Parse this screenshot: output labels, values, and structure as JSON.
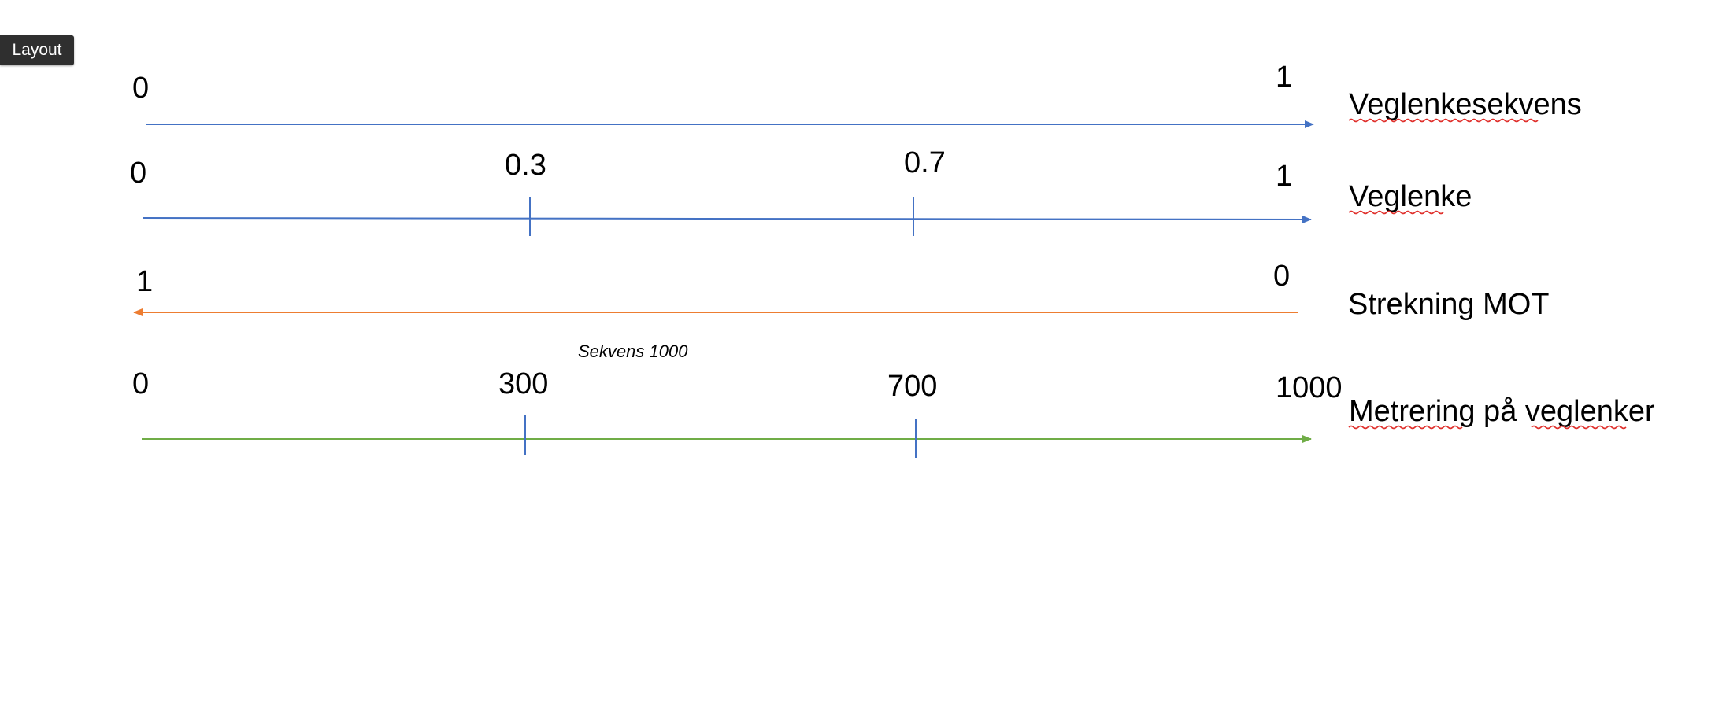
{
  "toolbar": {
    "layout_label": "Layout"
  },
  "colors": {
    "blue": "#4472c4",
    "orange": "#ed7d31",
    "green": "#70ad47",
    "spellcheck": "#e0312d"
  },
  "rows": [
    {
      "name": "Veglenkesekvens",
      "direction": "forward",
      "color": "#4472c4",
      "start_label": "0",
      "end_label": "1",
      "ticks": []
    },
    {
      "name": "Veglenke",
      "direction": "forward",
      "color": "#4472c4",
      "start_label": "0",
      "end_label": "1",
      "ticks": [
        "0.3",
        "0.7"
      ]
    },
    {
      "name": "Strekning MOT",
      "direction": "backward",
      "color": "#ed7d31",
      "start_label": "1",
      "end_label": "0",
      "ticks": []
    },
    {
      "name": "Metrering på veglenker",
      "direction": "forward",
      "color": "#70ad47",
      "start_label": "0",
      "end_label": "1000",
      "ticks": [
        "300",
        "700"
      ],
      "caption": "Sekvens 1000"
    }
  ]
}
